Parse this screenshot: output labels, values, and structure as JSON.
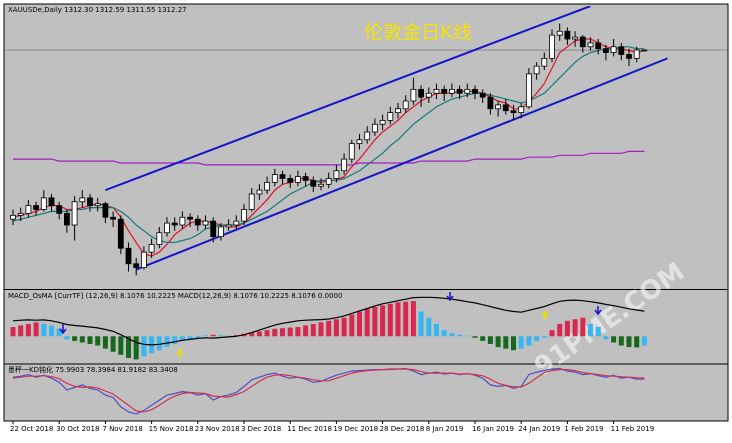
{
  "chart_data": [
    {
      "type": "candlestick",
      "title": "伦敦金日K线",
      "label": "XAUUSDe,Daily  1312.30 1312.59 1311.55 1312.27",
      "watermark": "91PME.COM",
      "categories": [
        "22 Oct 2018",
        null,
        null,
        null,
        null,
        null,
        "30 Oct 2018",
        null,
        null,
        null,
        null,
        null,
        "7 Nov 2018",
        null,
        null,
        null,
        null,
        null,
        "15 Nov 2018",
        null,
        null,
        null,
        null,
        null,
        "23 Nov 2018",
        null,
        null,
        null,
        null,
        null,
        "3 Dec 2018",
        null,
        null,
        null,
        null,
        null,
        "11 Dec 2018",
        null,
        null,
        null,
        null,
        null,
        "19 Dec 2018",
        null,
        null,
        null,
        null,
        null,
        "28 Dec 2018",
        null,
        null,
        null,
        null,
        null,
        "8 Jan 2019",
        null,
        null,
        null,
        null,
        null,
        "16 Jan 2019",
        null,
        null,
        null,
        null,
        null,
        "24 Jan 2019",
        null,
        null,
        null,
        null,
        null,
        "1 Feb 2019",
        null,
        null,
        null,
        null,
        null,
        "11 Feb 2019",
        null,
        null,
        null,
        null
      ],
      "candles": [
        [
          1225,
          1230,
          1222,
          1227
        ],
        [
          1227,
          1231,
          1224,
          1228
        ],
        [
          1228,
          1235,
          1226,
          1232
        ],
        [
          1232,
          1234,
          1227,
          1230
        ],
        [
          1230,
          1240,
          1229,
          1236
        ],
        [
          1236,
          1238,
          1229,
          1232
        ],
        [
          1232,
          1234,
          1225,
          1228
        ],
        [
          1228,
          1230,
          1218,
          1222
        ],
        [
          1222,
          1237,
          1214,
          1234
        ],
        [
          1234,
          1240,
          1231,
          1236
        ],
        [
          1236,
          1238,
          1229,
          1232
        ],
        [
          1232,
          1236,
          1229,
          1233
        ],
        [
          1233,
          1234,
          1223,
          1226
        ],
        [
          1226,
          1229,
          1221,
          1225
        ],
        [
          1225,
          1227,
          1207,
          1210
        ],
        [
          1210,
          1213,
          1198,
          1202
        ],
        [
          1202,
          1205,
          1196,
          1200
        ],
        [
          1200,
          1211,
          1199,
          1208
        ],
        [
          1208,
          1215,
          1205,
          1212
        ],
        [
          1212,
          1221,
          1210,
          1218
        ],
        [
          1218,
          1226,
          1216,
          1223
        ],
        [
          1223,
          1226,
          1219,
          1222
        ],
        [
          1222,
          1229,
          1220,
          1226
        ],
        [
          1226,
          1228,
          1221,
          1225
        ],
        [
          1225,
          1227,
          1219,
          1222
        ],
        [
          1222,
          1227,
          1220,
          1224
        ],
        [
          1224,
          1226,
          1213,
          1216
        ],
        [
          1216,
          1223,
          1214,
          1221
        ],
        [
          1221,
          1225,
          1219,
          1222
        ],
        [
          1222,
          1227,
          1220,
          1224
        ],
        [
          1224,
          1233,
          1222,
          1230
        ],
        [
          1230,
          1241,
          1229,
          1238
        ],
        [
          1238,
          1243,
          1235,
          1240
        ],
        [
          1240,
          1247,
          1238,
          1244
        ],
        [
          1244,
          1251,
          1242,
          1248
        ],
        [
          1248,
          1250,
          1243,
          1246
        ],
        [
          1246,
          1248,
          1241,
          1244
        ],
        [
          1244,
          1250,
          1242,
          1247
        ],
        [
          1247,
          1249,
          1242,
          1245
        ],
        [
          1245,
          1247,
          1239,
          1242
        ],
        [
          1242,
          1246,
          1240,
          1243
        ],
        [
          1243,
          1249,
          1241,
          1246
        ],
        [
          1246,
          1253,
          1244,
          1250
        ],
        [
          1250,
          1259,
          1248,
          1256
        ],
        [
          1256,
          1266,
          1254,
          1264
        ],
        [
          1264,
          1269,
          1261,
          1266
        ],
        [
          1266,
          1273,
          1264,
          1270
        ],
        [
          1270,
          1277,
          1268,
          1274
        ],
        [
          1274,
          1279,
          1271,
          1276
        ],
        [
          1276,
          1283,
          1274,
          1280
        ],
        [
          1280,
          1285,
          1277,
          1282
        ],
        [
          1282,
          1289,
          1280,
          1286
        ],
        [
          1286,
          1298,
          1284,
          1292
        ],
        [
          1292,
          1294,
          1283,
          1288
        ],
        [
          1288,
          1293,
          1285,
          1290
        ],
        [
          1290,
          1295,
          1287,
          1292
        ],
        [
          1292,
          1294,
          1286,
          1290
        ],
        [
          1290,
          1295,
          1288,
          1292
        ],
        [
          1292,
          1294,
          1287,
          1290
        ],
        [
          1290,
          1295,
          1288,
          1292
        ],
        [
          1292,
          1294,
          1287,
          1290
        ],
        [
          1290,
          1292,
          1285,
          1288
        ],
        [
          1288,
          1290,
          1279,
          1282
        ],
        [
          1282,
          1286,
          1278,
          1284
        ],
        [
          1284,
          1287,
          1279,
          1281
        ],
        [
          1281,
          1284,
          1276,
          1280
        ],
        [
          1280,
          1285,
          1277,
          1283
        ],
        [
          1283,
          1303,
          1282,
          1300
        ],
        [
          1300,
          1306,
          1297,
          1304
        ],
        [
          1304,
          1311,
          1302,
          1308
        ],
        [
          1308,
          1323,
          1306,
          1320
        ],
        [
          1320,
          1326,
          1317,
          1322
        ],
        [
          1322,
          1324,
          1315,
          1318
        ],
        [
          1318,
          1322,
          1314,
          1319
        ],
        [
          1319,
          1320,
          1311,
          1314
        ],
        [
          1314,
          1319,
          1312,
          1316
        ],
        [
          1316,
          1318,
          1310,
          1313
        ],
        [
          1313,
          1315,
          1307,
          1311
        ],
        [
          1311,
          1318,
          1309,
          1314
        ],
        [
          1314,
          1316,
          1307,
          1310
        ],
        [
          1310,
          1313,
          1304,
          1308
        ],
        [
          1308,
          1314,
          1306,
          1312.3
        ],
        [
          1312.3,
          1312.59,
          1311.55,
          1312.27
        ]
      ],
      "up_color": "#ffffff",
      "down_color": "#000000",
      "price_line_color": "#8c8c8c",
      "ylim": [
        1190,
        1334
      ],
      "lines": [
        {
          "color": "#e0102a",
          "values": [
            1226,
            1227,
            1228,
            1229,
            1231,
            1232,
            1232,
            1230,
            1230,
            1231,
            1232,
            1233,
            1232,
            1231,
            1226,
            1219,
            1213,
            1207,
            1206,
            1208,
            1212,
            1217,
            1220,
            1223,
            1224,
            1224,
            1223,
            1222,
            1221,
            1221,
            1223,
            1227,
            1231,
            1235,
            1240,
            1243,
            1244,
            1246,
            1246,
            1245,
            1244,
            1245,
            1245,
            1247,
            1252,
            1256,
            1261,
            1266,
            1270,
            1273,
            1276,
            1280,
            1283,
            1286,
            1288,
            1290,
            1290,
            1290,
            1291,
            1291,
            1291,
            1290,
            1288,
            1286,
            1285,
            1282,
            1282,
            1286,
            1290,
            1295,
            1303,
            1311,
            1314,
            1317,
            1318,
            1318,
            1316,
            1314,
            1313,
            1313,
            1312,
            1311,
            1312
          ]
        },
        {
          "color": "#117a7a",
          "values": [
            1224,
            1225,
            1226,
            1227,
            1228,
            1229,
            1229,
            1229,
            1230,
            1230,
            1231,
            1231,
            1231,
            1231,
            1229,
            1226,
            1222,
            1219,
            1216,
            1214,
            1213,
            1213,
            1214,
            1215,
            1217,
            1220,
            1221,
            1222,
            1222,
            1222,
            1223,
            1225,
            1227,
            1229,
            1232,
            1235,
            1238,
            1240,
            1242,
            1244,
            1245,
            1245,
            1245,
            1246,
            1248,
            1250,
            1253,
            1256,
            1259,
            1263,
            1266,
            1270,
            1274,
            1277,
            1280,
            1283,
            1285,
            1287,
            1288,
            1289,
            1290,
            1290,
            1289,
            1288,
            1287,
            1286,
            1285,
            1286,
            1288,
            1290,
            1294,
            1298,
            1302,
            1306,
            1309,
            1311,
            1312,
            1313,
            1313,
            1314,
            1314,
            1313,
            1313
          ]
        },
        {
          "color": "#a020c0",
          "values": [
            1256,
            1256,
            1256,
            1256,
            1256,
            1256,
            1255,
            1255,
            1255,
            1255,
            1255,
            1255,
            1255,
            1255,
            1254,
            1254,
            1254,
            1254,
            1254,
            1254,
            1254,
            1254,
            1254,
            1254,
            1254,
            1253,
            1253,
            1253,
            1253,
            1253,
            1253,
            1253,
            1253,
            1253,
            1253,
            1253,
            1253,
            1253,
            1253,
            1253,
            1253,
            1253,
            1253,
            1253,
            1253,
            1254,
            1254,
            1254,
            1254,
            1254,
            1254,
            1254,
            1254,
            1255,
            1255,
            1255,
            1255,
            1255,
            1255,
            1255,
            1256,
            1256,
            1256,
            1256,
            1256,
            1256,
            1256,
            1257,
            1257,
            1257,
            1257,
            1258,
            1258,
            1258,
            1258,
            1259,
            1259,
            1259,
            1259,
            1259,
            1260,
            1260,
            1260
          ]
        }
      ],
      "trendlines": [
        {
          "color": "#1414c8",
          "points": [
            [
              12,
              1240
            ],
            [
              75,
              1335
            ]
          ]
        },
        {
          "color": "#1414c8",
          "points": [
            [
              16,
              1199
            ],
            [
              85,
              1308
            ]
          ]
        }
      ]
    },
    {
      "type": "histogram",
      "label": "MACD_OsMA [CurrTF] (12,26,9) 8.1076 10.2225  MACD(12,26,9) 8.1076 10.2225 8.1076 0.0000",
      "values": [
        3,
        3.5,
        4,
        4.5,
        4,
        3.5,
        2.5,
        -1,
        -1.5,
        -2,
        -2.5,
        -3,
        -4,
        -5,
        -6,
        -7,
        -7.5,
        -6.5,
        -5.5,
        -4.5,
        -3.5,
        -2.5,
        -1.5,
        -1,
        -0.5,
        0.3,
        0.5,
        0.3,
        0.2,
        0.4,
        0.8,
        1.2,
        1.6,
        2,
        2.4,
        2.6,
        2.8,
        3,
        3.5,
        4,
        4.5,
        5,
        5.5,
        6,
        7,
        8,
        9,
        9.5,
        10,
        10.5,
        11,
        11.2,
        11.4,
        8,
        6,
        4,
        2,
        1,
        0.5,
        0.2,
        -0.5,
        -1.5,
        -2.5,
        -3.5,
        -4,
        -4.5,
        -4,
        -3,
        -1.5,
        -0.5,
        2,
        4,
        5,
        5.5,
        6,
        4,
        3,
        -1,
        -2,
        -3,
        -3.5,
        -3.6,
        -3
      ],
      "colors": {
        "rising_positive": "#d8284e",
        "falling_negative": "#16691c",
        "toward_zero": "#36b6f2"
      },
      "ylim": [
        -8,
        14
      ],
      "lines": [
        {
          "color": "#000000",
          "values": [
            5,
            5.2,
            5.3,
            5.2,
            5.3,
            5,
            4.5,
            3.8,
            3.5,
            3.3,
            3,
            2.7,
            2.2,
            1.6,
            0.5,
            -0.8,
            -2,
            -2.6,
            -2.8,
            -2.6,
            -2.2,
            -1.8,
            -1.3,
            -1,
            -0.7,
            -0.5,
            -0.6,
            -0.4,
            -0.2,
            0,
            0.5,
            1.2,
            2,
            2.8,
            3.6,
            4.2,
            4.6,
            5,
            5.2,
            5.3,
            5.4,
            5.6,
            6,
            6.6,
            7.4,
            8.2,
            9,
            9.8,
            10.5,
            11,
            11.5,
            12,
            12.5,
            12.6,
            12.6,
            12.5,
            12.3,
            12,
            11.6,
            11.2,
            10.8,
            10.2,
            9.6,
            9,
            8.4,
            8,
            7.8,
            8.4,
            9,
            9.6,
            10.5,
            11.3,
            11.6,
            11.7,
            11.5,
            11.2,
            10.8,
            10.3,
            9.9,
            9.4,
            8.9,
            8.5,
            8.1076
          ]
        }
      ]
    },
    {
      "type": "line",
      "label": "墨秤一KD钝化 75.9903 78.3984 81.9182 83.3408",
      "ylim": [
        0,
        100
      ],
      "lines": [
        {
          "color": "#4e4ec8",
          "values": [
            80,
            82,
            85,
            80,
            84,
            78,
            70,
            55,
            60,
            65,
            58,
            55,
            45,
            40,
            22,
            12,
            8,
            15,
            25,
            35,
            45,
            48,
            52,
            50,
            45,
            48,
            35,
            42,
            45,
            50,
            62,
            75,
            80,
            85,
            88,
            82,
            78,
            80,
            76,
            70,
            72,
            78,
            84,
            88,
            92,
            93,
            94,
            95,
            95,
            96,
            96,
            97,
            92,
            85,
            88,
            90,
            86,
            88,
            85,
            87,
            84,
            78,
            65,
            62,
            64,
            58,
            62,
            85,
            90,
            93,
            96,
            97,
            92,
            90,
            85,
            87,
            83,
            80,
            84,
            78,
            80,
            76,
            75.9903
          ]
        },
        {
          "color": "#d03050",
          "values": [
            78,
            80,
            82,
            82,
            83,
            81,
            77,
            68,
            62,
            60,
            61,
            59,
            53,
            47,
            36,
            25,
            14,
            12,
            16,
            25,
            35,
            43,
            48,
            50,
            49,
            48,
            43,
            42,
            41,
            46,
            52,
            62,
            72,
            80,
            84,
            85,
            83,
            80,
            78,
            75,
            73,
            73,
            78,
            83,
            88,
            91,
            93,
            94,
            95,
            95,
            96,
            96,
            95,
            91,
            88,
            88,
            88,
            88,
            86,
            87,
            85,
            83,
            76,
            68,
            64,
            61,
            61,
            68,
            79,
            89,
            93,
            95,
            95,
            93,
            89,
            87,
            85,
            83,
            82,
            81,
            80,
            79,
            78.3984
          ]
        }
      ]
    }
  ]
}
